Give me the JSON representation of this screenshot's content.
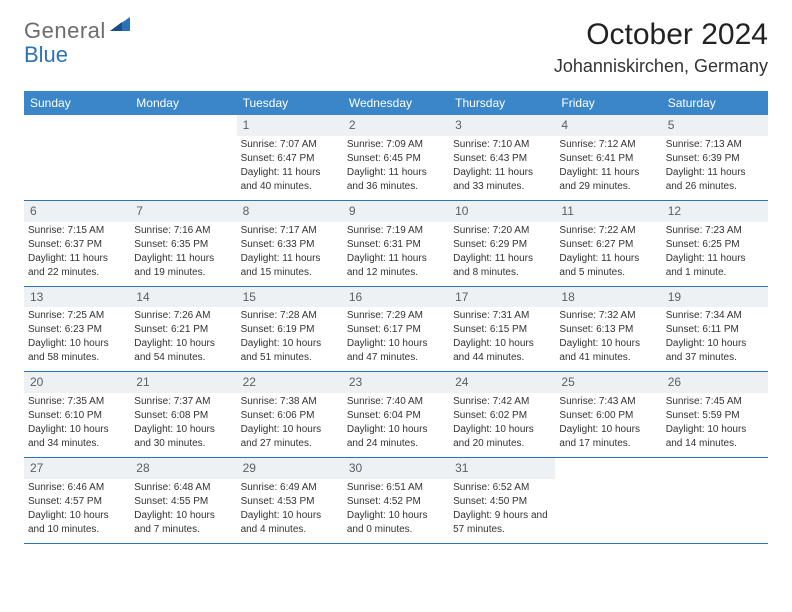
{
  "brand": {
    "text1": "General",
    "text2": "Blue"
  },
  "title": {
    "month": "October 2024",
    "location": "Johanniskirchen, Germany"
  },
  "colors": {
    "header_bg": "#3a86c8",
    "divider": "#2b72b9",
    "daynum_bg": "#eef1f4",
    "text": "#333333",
    "logo_gray": "#6c6c6c",
    "logo_blue": "#2b72b9"
  },
  "dow": [
    "Sunday",
    "Monday",
    "Tuesday",
    "Wednesday",
    "Thursday",
    "Friday",
    "Saturday"
  ],
  "weeks": [
    [
      null,
      null,
      {
        "n": "1",
        "sr": "Sunrise: 7:07 AM",
        "ss": "Sunset: 6:47 PM",
        "dl": "Daylight: 11 hours and 40 minutes."
      },
      {
        "n": "2",
        "sr": "Sunrise: 7:09 AM",
        "ss": "Sunset: 6:45 PM",
        "dl": "Daylight: 11 hours and 36 minutes."
      },
      {
        "n": "3",
        "sr": "Sunrise: 7:10 AM",
        "ss": "Sunset: 6:43 PM",
        "dl": "Daylight: 11 hours and 33 minutes."
      },
      {
        "n": "4",
        "sr": "Sunrise: 7:12 AM",
        "ss": "Sunset: 6:41 PM",
        "dl": "Daylight: 11 hours and 29 minutes."
      },
      {
        "n": "5",
        "sr": "Sunrise: 7:13 AM",
        "ss": "Sunset: 6:39 PM",
        "dl": "Daylight: 11 hours and 26 minutes."
      }
    ],
    [
      {
        "n": "6",
        "sr": "Sunrise: 7:15 AM",
        "ss": "Sunset: 6:37 PM",
        "dl": "Daylight: 11 hours and 22 minutes."
      },
      {
        "n": "7",
        "sr": "Sunrise: 7:16 AM",
        "ss": "Sunset: 6:35 PM",
        "dl": "Daylight: 11 hours and 19 minutes."
      },
      {
        "n": "8",
        "sr": "Sunrise: 7:17 AM",
        "ss": "Sunset: 6:33 PM",
        "dl": "Daylight: 11 hours and 15 minutes."
      },
      {
        "n": "9",
        "sr": "Sunrise: 7:19 AM",
        "ss": "Sunset: 6:31 PM",
        "dl": "Daylight: 11 hours and 12 minutes."
      },
      {
        "n": "10",
        "sr": "Sunrise: 7:20 AM",
        "ss": "Sunset: 6:29 PM",
        "dl": "Daylight: 11 hours and 8 minutes."
      },
      {
        "n": "11",
        "sr": "Sunrise: 7:22 AM",
        "ss": "Sunset: 6:27 PM",
        "dl": "Daylight: 11 hours and 5 minutes."
      },
      {
        "n": "12",
        "sr": "Sunrise: 7:23 AM",
        "ss": "Sunset: 6:25 PM",
        "dl": "Daylight: 11 hours and 1 minute."
      }
    ],
    [
      {
        "n": "13",
        "sr": "Sunrise: 7:25 AM",
        "ss": "Sunset: 6:23 PM",
        "dl": "Daylight: 10 hours and 58 minutes."
      },
      {
        "n": "14",
        "sr": "Sunrise: 7:26 AM",
        "ss": "Sunset: 6:21 PM",
        "dl": "Daylight: 10 hours and 54 minutes."
      },
      {
        "n": "15",
        "sr": "Sunrise: 7:28 AM",
        "ss": "Sunset: 6:19 PM",
        "dl": "Daylight: 10 hours and 51 minutes."
      },
      {
        "n": "16",
        "sr": "Sunrise: 7:29 AM",
        "ss": "Sunset: 6:17 PM",
        "dl": "Daylight: 10 hours and 47 minutes."
      },
      {
        "n": "17",
        "sr": "Sunrise: 7:31 AM",
        "ss": "Sunset: 6:15 PM",
        "dl": "Daylight: 10 hours and 44 minutes."
      },
      {
        "n": "18",
        "sr": "Sunrise: 7:32 AM",
        "ss": "Sunset: 6:13 PM",
        "dl": "Daylight: 10 hours and 41 minutes."
      },
      {
        "n": "19",
        "sr": "Sunrise: 7:34 AM",
        "ss": "Sunset: 6:11 PM",
        "dl": "Daylight: 10 hours and 37 minutes."
      }
    ],
    [
      {
        "n": "20",
        "sr": "Sunrise: 7:35 AM",
        "ss": "Sunset: 6:10 PM",
        "dl": "Daylight: 10 hours and 34 minutes."
      },
      {
        "n": "21",
        "sr": "Sunrise: 7:37 AM",
        "ss": "Sunset: 6:08 PM",
        "dl": "Daylight: 10 hours and 30 minutes."
      },
      {
        "n": "22",
        "sr": "Sunrise: 7:38 AM",
        "ss": "Sunset: 6:06 PM",
        "dl": "Daylight: 10 hours and 27 minutes."
      },
      {
        "n": "23",
        "sr": "Sunrise: 7:40 AM",
        "ss": "Sunset: 6:04 PM",
        "dl": "Daylight: 10 hours and 24 minutes."
      },
      {
        "n": "24",
        "sr": "Sunrise: 7:42 AM",
        "ss": "Sunset: 6:02 PM",
        "dl": "Daylight: 10 hours and 20 minutes."
      },
      {
        "n": "25",
        "sr": "Sunrise: 7:43 AM",
        "ss": "Sunset: 6:00 PM",
        "dl": "Daylight: 10 hours and 17 minutes."
      },
      {
        "n": "26",
        "sr": "Sunrise: 7:45 AM",
        "ss": "Sunset: 5:59 PM",
        "dl": "Daylight: 10 hours and 14 minutes."
      }
    ],
    [
      {
        "n": "27",
        "sr": "Sunrise: 6:46 AM",
        "ss": "Sunset: 4:57 PM",
        "dl": "Daylight: 10 hours and 10 minutes."
      },
      {
        "n": "28",
        "sr": "Sunrise: 6:48 AM",
        "ss": "Sunset: 4:55 PM",
        "dl": "Daylight: 10 hours and 7 minutes."
      },
      {
        "n": "29",
        "sr": "Sunrise: 6:49 AM",
        "ss": "Sunset: 4:53 PM",
        "dl": "Daylight: 10 hours and 4 minutes."
      },
      {
        "n": "30",
        "sr": "Sunrise: 6:51 AM",
        "ss": "Sunset: 4:52 PM",
        "dl": "Daylight: 10 hours and 0 minutes."
      },
      {
        "n": "31",
        "sr": "Sunrise: 6:52 AM",
        "ss": "Sunset: 4:50 PM",
        "dl": "Daylight: 9 hours and 57 minutes."
      },
      null,
      null
    ]
  ]
}
